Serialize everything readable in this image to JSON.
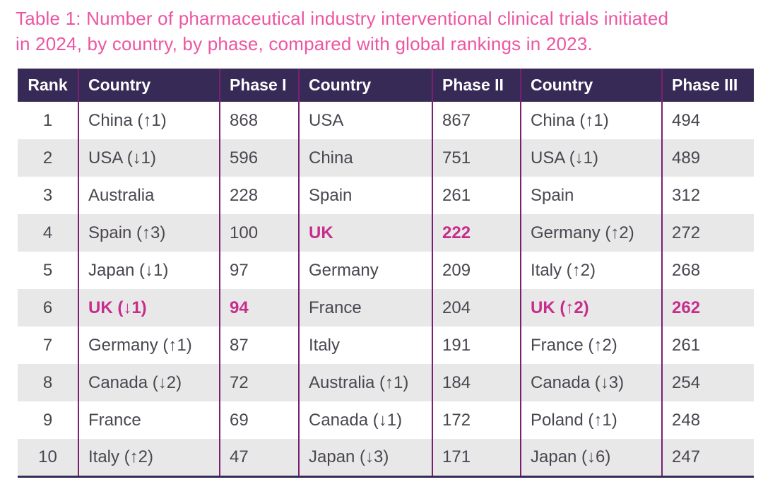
{
  "title": {
    "line1": "Table 1: Number of pharmaceutical industry interventional clinical trials initiated",
    "line2": "in 2024, by country, by phase, compared with global rankings in 2023."
  },
  "colors": {
    "title_pink": "#ec55a2",
    "accent_pink": "#c72d8c",
    "header_bg": "#382a56",
    "divider": "#7b1f72",
    "stripe": "#e9e8e8",
    "body_text": "#4a4650",
    "header_text": "#ffffff"
  },
  "table": {
    "columns": [
      "Rank",
      "Country",
      "Phase I",
      "Country",
      "Phase II",
      "Country",
      "Phase III"
    ],
    "rows": [
      {
        "rank": "1",
        "cells": [
          {
            "text": "China (↑1)"
          },
          {
            "text": "868"
          },
          {
            "text": "USA"
          },
          {
            "text": "867"
          },
          {
            "text": "China (↑1)"
          },
          {
            "text": "494"
          }
        ]
      },
      {
        "rank": "2",
        "cells": [
          {
            "text": "USA (↓1)"
          },
          {
            "text": "596"
          },
          {
            "text": "China"
          },
          {
            "text": "751"
          },
          {
            "text": "USA (↓1)"
          },
          {
            "text": "489"
          }
        ]
      },
      {
        "rank": "3",
        "cells": [
          {
            "text": "Australia"
          },
          {
            "text": "228"
          },
          {
            "text": "Spain"
          },
          {
            "text": "261"
          },
          {
            "text": "Spain"
          },
          {
            "text": "312"
          }
        ]
      },
      {
        "rank": "4",
        "cells": [
          {
            "text": "Spain (↑3)"
          },
          {
            "text": "100"
          },
          {
            "text": "UK",
            "highlight": true
          },
          {
            "text": "222",
            "highlight": true
          },
          {
            "text": "Germany (↑2)"
          },
          {
            "text": "272"
          }
        ]
      },
      {
        "rank": "5",
        "cells": [
          {
            "text": "Japan (↓1)"
          },
          {
            "text": "97"
          },
          {
            "text": "Germany"
          },
          {
            "text": "209"
          },
          {
            "text": "Italy (↑2)"
          },
          {
            "text": "268"
          }
        ]
      },
      {
        "rank": "6",
        "cells": [
          {
            "text": "UK (↓1)",
            "highlight": true
          },
          {
            "text": "94",
            "highlight": true
          },
          {
            "text": "France"
          },
          {
            "text": "204"
          },
          {
            "text": "UK (↑2)",
            "highlight": true
          },
          {
            "text": "262",
            "highlight": true
          }
        ]
      },
      {
        "rank": "7",
        "cells": [
          {
            "text": "Germany (↑1)"
          },
          {
            "text": "87"
          },
          {
            "text": "Italy"
          },
          {
            "text": "191"
          },
          {
            "text": "France (↑2)"
          },
          {
            "text": "261"
          }
        ]
      },
      {
        "rank": "8",
        "cells": [
          {
            "text": "Canada (↓2)"
          },
          {
            "text": "72"
          },
          {
            "text": "Australia (↑1)"
          },
          {
            "text": "184"
          },
          {
            "text": "Canada (↓3)"
          },
          {
            "text": "254"
          }
        ]
      },
      {
        "rank": "9",
        "cells": [
          {
            "text": "France"
          },
          {
            "text": "69"
          },
          {
            "text": "Canada (↓1)"
          },
          {
            "text": "172"
          },
          {
            "text": "Poland (↑1)"
          },
          {
            "text": "248"
          }
        ]
      },
      {
        "rank": "10",
        "cells": [
          {
            "text": "Italy (↑2)"
          },
          {
            "text": "47"
          },
          {
            "text": "Japan (↓3)"
          },
          {
            "text": "171"
          },
          {
            "text": "Japan (↓6)"
          },
          {
            "text": "247"
          }
        ]
      }
    ]
  }
}
